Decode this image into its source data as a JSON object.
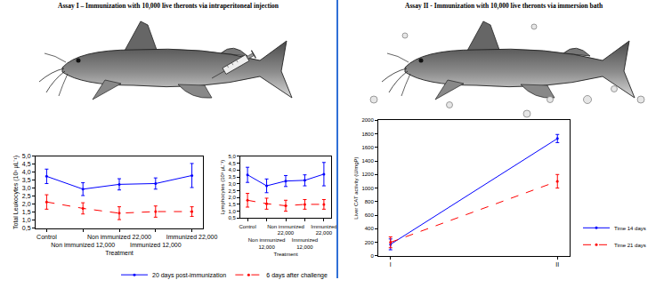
{
  "panel_titles": [
    "Assay I – Immunization with 10,000 live theronts via intraperitoneal injection",
    "Assay II - Immunization with 10,000 live theronts via immersion bath"
  ],
  "chart_data": [
    {
      "type": "line",
      "y_label": "Total Leukocytes (10³ µL⁻¹)",
      "x_label": "Treatment",
      "categories": [
        "Control",
        "Non immunized 12,000",
        "Non immunized 22,000",
        "Immunized 12,000",
        "Immunized 22,000"
      ],
      "series": [
        {
          "name": "20 days post-immunization",
          "color": "#0000ff",
          "line_style": "solid",
          "marker": "circle",
          "values": [
            3.75,
            2.95,
            3.25,
            3.3,
            3.8
          ],
          "errors": [
            0.45,
            0.4,
            0.35,
            0.35,
            0.75
          ]
        },
        {
          "name": "6 days after challenge",
          "color": "#ff0000",
          "line_style": "dashed",
          "marker": "circle",
          "values": [
            2.15,
            1.75,
            1.45,
            1.55,
            1.55
          ],
          "errors": [
            0.45,
            0.35,
            0.4,
            0.35,
            0.3
          ]
        }
      ],
      "ylim": [
        0.5,
        5.0
      ],
      "yticks": [
        {
          "value": 0.5,
          "label": "0,5"
        },
        {
          "value": 1.0,
          "label": "1,0"
        },
        {
          "value": 1.5,
          "label": "1,5"
        },
        {
          "value": 2.0,
          "label": "2,0"
        },
        {
          "value": 2.5,
          "label": "2,5"
        },
        {
          "value": 3.0,
          "label": "3,0"
        },
        {
          "value": 3.5,
          "label": "3,5"
        },
        {
          "value": 4.0,
          "label": "4,0"
        },
        {
          "value": 4.5,
          "label": "4,5"
        },
        {
          "value": 5.0,
          "label": "5,0"
        }
      ],
      "grid": false
    },
    {
      "type": "line",
      "y_label": "Lymphocytes (10³ µL⁻¹)",
      "x_label": "Treatment",
      "categories": [
        "Control",
        "Non immunized 12,000",
        "Non immunized 22,000",
        "Immunized 12,000",
        "Immunized 22,000"
      ],
      "series": [
        {
          "name": "20 days post-immunization",
          "color": "#0000ff",
          "line_style": "solid",
          "marker": "circle",
          "values": [
            3.65,
            2.85,
            3.2,
            3.25,
            3.7
          ],
          "errors": [
            0.55,
            0.5,
            0.4,
            0.4,
            0.85
          ]
        },
        {
          "name": "6 days after challenge",
          "color": "#ff0000",
          "line_style": "dashed",
          "marker": "circle",
          "values": [
            1.8,
            1.55,
            1.4,
            1.5,
            1.5
          ],
          "errors": [
            0.5,
            0.4,
            0.4,
            0.35,
            0.35
          ]
        }
      ],
      "ylim": [
        0.5,
        5.0
      ],
      "yticks": [
        {
          "value": 0.5,
          "label": "0,5"
        },
        {
          "value": 1.0,
          "label": "1,0"
        },
        {
          "value": 1.5,
          "label": "1,5"
        },
        {
          "value": 2.0,
          "label": "2,0"
        },
        {
          "value": 2.5,
          "label": "2,5"
        },
        {
          "value": 3.0,
          "label": "3,0"
        },
        {
          "value": 3.5,
          "label": "3,5"
        },
        {
          "value": 4.0,
          "label": "4,0"
        },
        {
          "value": 4.5,
          "label": "4,5"
        },
        {
          "value": 5.0,
          "label": "5,0"
        }
      ],
      "grid": false,
      "legend": "bottom"
    },
    {
      "type": "line",
      "y_label": "Liver CAT activity (U/mgP)",
      "categories": [
        "I",
        "II"
      ],
      "series": [
        {
          "name": "Time 14 days",
          "color": "#0000ff",
          "line_style": "solid",
          "marker": "circle",
          "values": [
            170,
            1730
          ],
          "errors": [
            80,
            60
          ]
        },
        {
          "name": "Time 21 days",
          "color": "#ff0000",
          "line_style": "dashed",
          "marker": "circle",
          "values": [
            200,
            1100
          ],
          "errors": [
            80,
            100
          ]
        }
      ],
      "ylim": [
        0,
        2000
      ],
      "yticks": [
        0,
        200,
        400,
        600,
        800,
        1000,
        1200,
        1400,
        1600,
        1800,
        2000
      ],
      "grid": false,
      "legend": "lower right"
    }
  ]
}
